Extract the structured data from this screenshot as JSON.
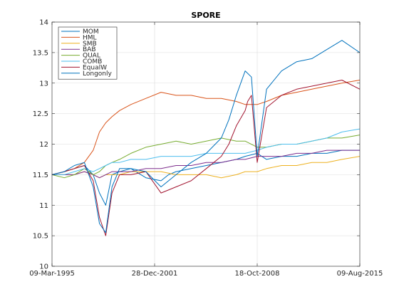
{
  "chart_data": {
    "type": "line",
    "title": "SPORE",
    "xlabel": "",
    "ylabel": "",
    "ylim": [
      10,
      14
    ],
    "yticks": [
      10,
      10.5,
      11,
      11.5,
      12,
      12.5,
      13,
      13.5,
      14
    ],
    "ytick_labels": [
      "10",
      "10.5",
      "11",
      "11.5",
      "12",
      "12.5",
      "13",
      "13.5",
      "14"
    ],
    "xlim": [
      "1995-03-09",
      "2015-08-09"
    ],
    "xticks": [
      "1995-03-09",
      "2001-12-28",
      "2008-10-18",
      "2015-08-09"
    ],
    "xtick_labels": [
      "09-Mar-1995",
      "28-Dec-2001",
      "18-Oct-2008",
      "09-Aug-2015"
    ],
    "grid": true,
    "legend_position": "top-left",
    "series": [
      {
        "name": "MOM",
        "color": "#0072BD",
        "x": [
          "1995-03-09",
          "1996-01-01",
          "1996-09-01",
          "1997-05-01",
          "1997-12-01",
          "1998-05-01",
          "1998-10-01",
          "1999-03-01",
          "1999-09-01",
          "2000-06-01",
          "2001-06-01",
          "2002-06-01",
          "2002-12-01",
          "2003-06-01",
          "2004-06-01",
          "2005-06-01",
          "2006-06-01",
          "2007-06-01",
          "2008-01-01",
          "2008-10-18",
          "2009-06-01",
          "2010-06-01",
          "2011-06-01",
          "2012-06-01",
          "2013-06-01",
          "2014-06-01",
          "2015-08-09"
        ],
        "values": [
          11.5,
          11.55,
          11.6,
          11.65,
          11.5,
          11.2,
          11.0,
          11.5,
          11.55,
          11.6,
          11.45,
          11.4,
          11.5,
          11.55,
          11.6,
          11.65,
          11.7,
          11.75,
          11.8,
          11.85,
          11.75,
          11.8,
          11.8,
          11.85,
          11.85,
          11.9,
          11.9
        ]
      },
      {
        "name": "HML",
        "color": "#D95319",
        "x": [
          "1995-03-09",
          "1996-01-01",
          "1996-09-01",
          "1997-05-01",
          "1997-12-01",
          "1998-05-01",
          "1998-10-01",
          "1999-03-01",
          "1999-09-01",
          "2000-06-01",
          "2001-06-01",
          "2002-06-01",
          "2003-06-01",
          "2004-06-01",
          "2005-06-01",
          "2006-06-01",
          "2007-06-01",
          "2008-01-01",
          "2008-10-18",
          "2009-06-01",
          "2010-06-01",
          "2011-06-01",
          "2012-06-01",
          "2013-06-01",
          "2014-06-01",
          "2015-08-09"
        ],
        "values": [
          11.5,
          11.55,
          11.6,
          11.7,
          11.9,
          12.2,
          12.35,
          12.45,
          12.55,
          12.65,
          12.75,
          12.85,
          12.8,
          12.8,
          12.75,
          12.75,
          12.7,
          12.65,
          12.65,
          12.7,
          12.8,
          12.85,
          12.9,
          12.95,
          13.0,
          13.05
        ]
      },
      {
        "name": "SMB",
        "color": "#EDB120",
        "x": [
          "1995-03-09",
          "1996-01-01",
          "1996-09-01",
          "1997-05-01",
          "1997-12-01",
          "1998-05-01",
          "1998-10-01",
          "1999-03-01",
          "1999-09-01",
          "2000-06-01",
          "2001-06-01",
          "2002-06-01",
          "2003-06-01",
          "2004-06-01",
          "2005-06-01",
          "2006-06-01",
          "2007-06-01",
          "2008-01-01",
          "2008-10-18",
          "2009-06-01",
          "2010-06-01",
          "2011-06-01",
          "2012-06-01",
          "2013-06-01",
          "2014-06-01",
          "2015-08-09"
        ],
        "values": [
          11.5,
          11.5,
          11.5,
          11.55,
          11.5,
          11.45,
          11.5,
          11.5,
          11.5,
          11.55,
          11.55,
          11.55,
          11.5,
          11.5,
          11.5,
          11.45,
          11.5,
          11.55,
          11.55,
          11.6,
          11.65,
          11.65,
          11.7,
          11.7,
          11.75,
          11.8
        ]
      },
      {
        "name": "BAB",
        "color": "#7E2F8E",
        "x": [
          "1995-03-09",
          "1996-01-01",
          "1996-09-01",
          "1997-05-01",
          "1997-12-01",
          "1998-05-01",
          "1998-10-01",
          "1999-03-01",
          "1999-09-01",
          "2000-06-01",
          "2001-06-01",
          "2002-06-01",
          "2003-06-01",
          "2004-06-01",
          "2005-06-01",
          "2006-06-01",
          "2007-06-01",
          "2008-01-01",
          "2008-10-18",
          "2009-06-01",
          "2010-06-01",
          "2011-06-01",
          "2012-06-01",
          "2013-06-01",
          "2014-06-01",
          "2015-08-09"
        ],
        "values": [
          11.5,
          11.5,
          11.5,
          11.55,
          11.5,
          11.45,
          11.5,
          11.55,
          11.55,
          11.55,
          11.6,
          11.6,
          11.65,
          11.65,
          11.7,
          11.7,
          11.75,
          11.75,
          11.8,
          11.8,
          11.8,
          11.85,
          11.85,
          11.9,
          11.9,
          11.9
        ]
      },
      {
        "name": "QUAL",
        "color": "#77AC30",
        "x": [
          "1995-03-09",
          "1996-01-01",
          "1996-09-01",
          "1997-05-01",
          "1997-12-01",
          "1998-05-01",
          "1998-10-01",
          "1999-03-01",
          "1999-09-01",
          "2000-06-01",
          "2001-06-01",
          "2002-06-01",
          "2003-06-01",
          "2004-06-01",
          "2005-06-01",
          "2006-06-01",
          "2007-06-01",
          "2008-01-01",
          "2008-10-18",
          "2009-06-01",
          "2010-06-01",
          "2011-06-01",
          "2012-06-01",
          "2013-06-01",
          "2014-06-01",
          "2015-08-09"
        ],
        "values": [
          11.5,
          11.45,
          11.5,
          11.6,
          11.5,
          11.55,
          11.65,
          11.7,
          11.75,
          11.85,
          11.95,
          12.0,
          12.05,
          12.0,
          12.05,
          12.1,
          12.05,
          12.05,
          11.95,
          11.95,
          12.0,
          12.0,
          12.05,
          12.1,
          12.1,
          12.15
        ]
      },
      {
        "name": "COMB",
        "color": "#4DBEEE",
        "x": [
          "1995-03-09",
          "1996-01-01",
          "1996-09-01",
          "1997-05-01",
          "1997-12-01",
          "1998-05-01",
          "1998-10-01",
          "1999-03-01",
          "1999-09-01",
          "2000-06-01",
          "2001-06-01",
          "2002-06-01",
          "2003-06-01",
          "2004-06-01",
          "2005-06-01",
          "2006-06-01",
          "2007-06-01",
          "2008-01-01",
          "2008-10-18",
          "2009-06-01",
          "2010-06-01",
          "2011-06-01",
          "2012-06-01",
          "2013-06-01",
          "2014-06-01",
          "2015-08-09"
        ],
        "values": [
          11.5,
          11.5,
          11.55,
          11.6,
          11.55,
          11.6,
          11.65,
          11.7,
          11.7,
          11.75,
          11.75,
          11.8,
          11.8,
          11.8,
          11.85,
          11.85,
          11.85,
          11.85,
          11.9,
          11.95,
          12.0,
          12.0,
          12.05,
          12.1,
          12.2,
          12.25
        ]
      },
      {
        "name": "EqualW",
        "color": "#A2142F",
        "x": [
          "1995-03-09",
          "1996-01-01",
          "1996-09-01",
          "1997-05-01",
          "1997-12-01",
          "1998-05-01",
          "1998-10-01",
          "1999-03-01",
          "1999-09-01",
          "2000-06-01",
          "2001-06-01",
          "2002-06-01",
          "2003-06-01",
          "2004-06-01",
          "2005-06-01",
          "2006-06-01",
          "2006-12-01",
          "2007-06-01",
          "2008-01-01",
          "2008-03-01",
          "2008-06-01",
          "2008-10-18",
          "2009-06-01",
          "2010-06-01",
          "2011-06-01",
          "2012-06-01",
          "2013-06-01",
          "2014-06-01",
          "2015-08-09"
        ],
        "values": [
          11.5,
          11.55,
          11.6,
          11.65,
          11.4,
          10.8,
          10.5,
          11.2,
          11.5,
          11.5,
          11.55,
          11.2,
          11.3,
          11.4,
          11.6,
          11.8,
          12.0,
          12.3,
          12.55,
          12.7,
          12.8,
          11.7,
          12.6,
          12.8,
          12.9,
          12.95,
          13.0,
          13.05,
          12.9
        ]
      },
      {
        "name": "Longonly",
        "color": "#0072BD",
        "x": [
          "1995-03-09",
          "1996-01-01",
          "1996-09-01",
          "1997-05-01",
          "1997-12-01",
          "1998-05-01",
          "1998-10-01",
          "1999-03-01",
          "1999-09-01",
          "2000-06-01",
          "2001-06-01",
          "2002-06-01",
          "2003-06-01",
          "2004-06-01",
          "2005-06-01",
          "2006-06-01",
          "2006-12-01",
          "2007-06-01",
          "2008-01-01",
          "2008-06-01",
          "2008-10-18",
          "2009-06-01",
          "2010-06-01",
          "2011-06-01",
          "2012-06-01",
          "2013-06-01",
          "2014-06-01",
          "2015-08-09"
        ],
        "values": [
          11.5,
          11.55,
          11.65,
          11.7,
          11.3,
          10.7,
          10.55,
          11.3,
          11.6,
          11.6,
          11.55,
          11.3,
          11.5,
          11.7,
          11.85,
          12.1,
          12.4,
          12.8,
          13.2,
          13.1,
          11.8,
          12.9,
          13.2,
          13.35,
          13.4,
          13.55,
          13.7,
          13.5
        ]
      }
    ]
  }
}
